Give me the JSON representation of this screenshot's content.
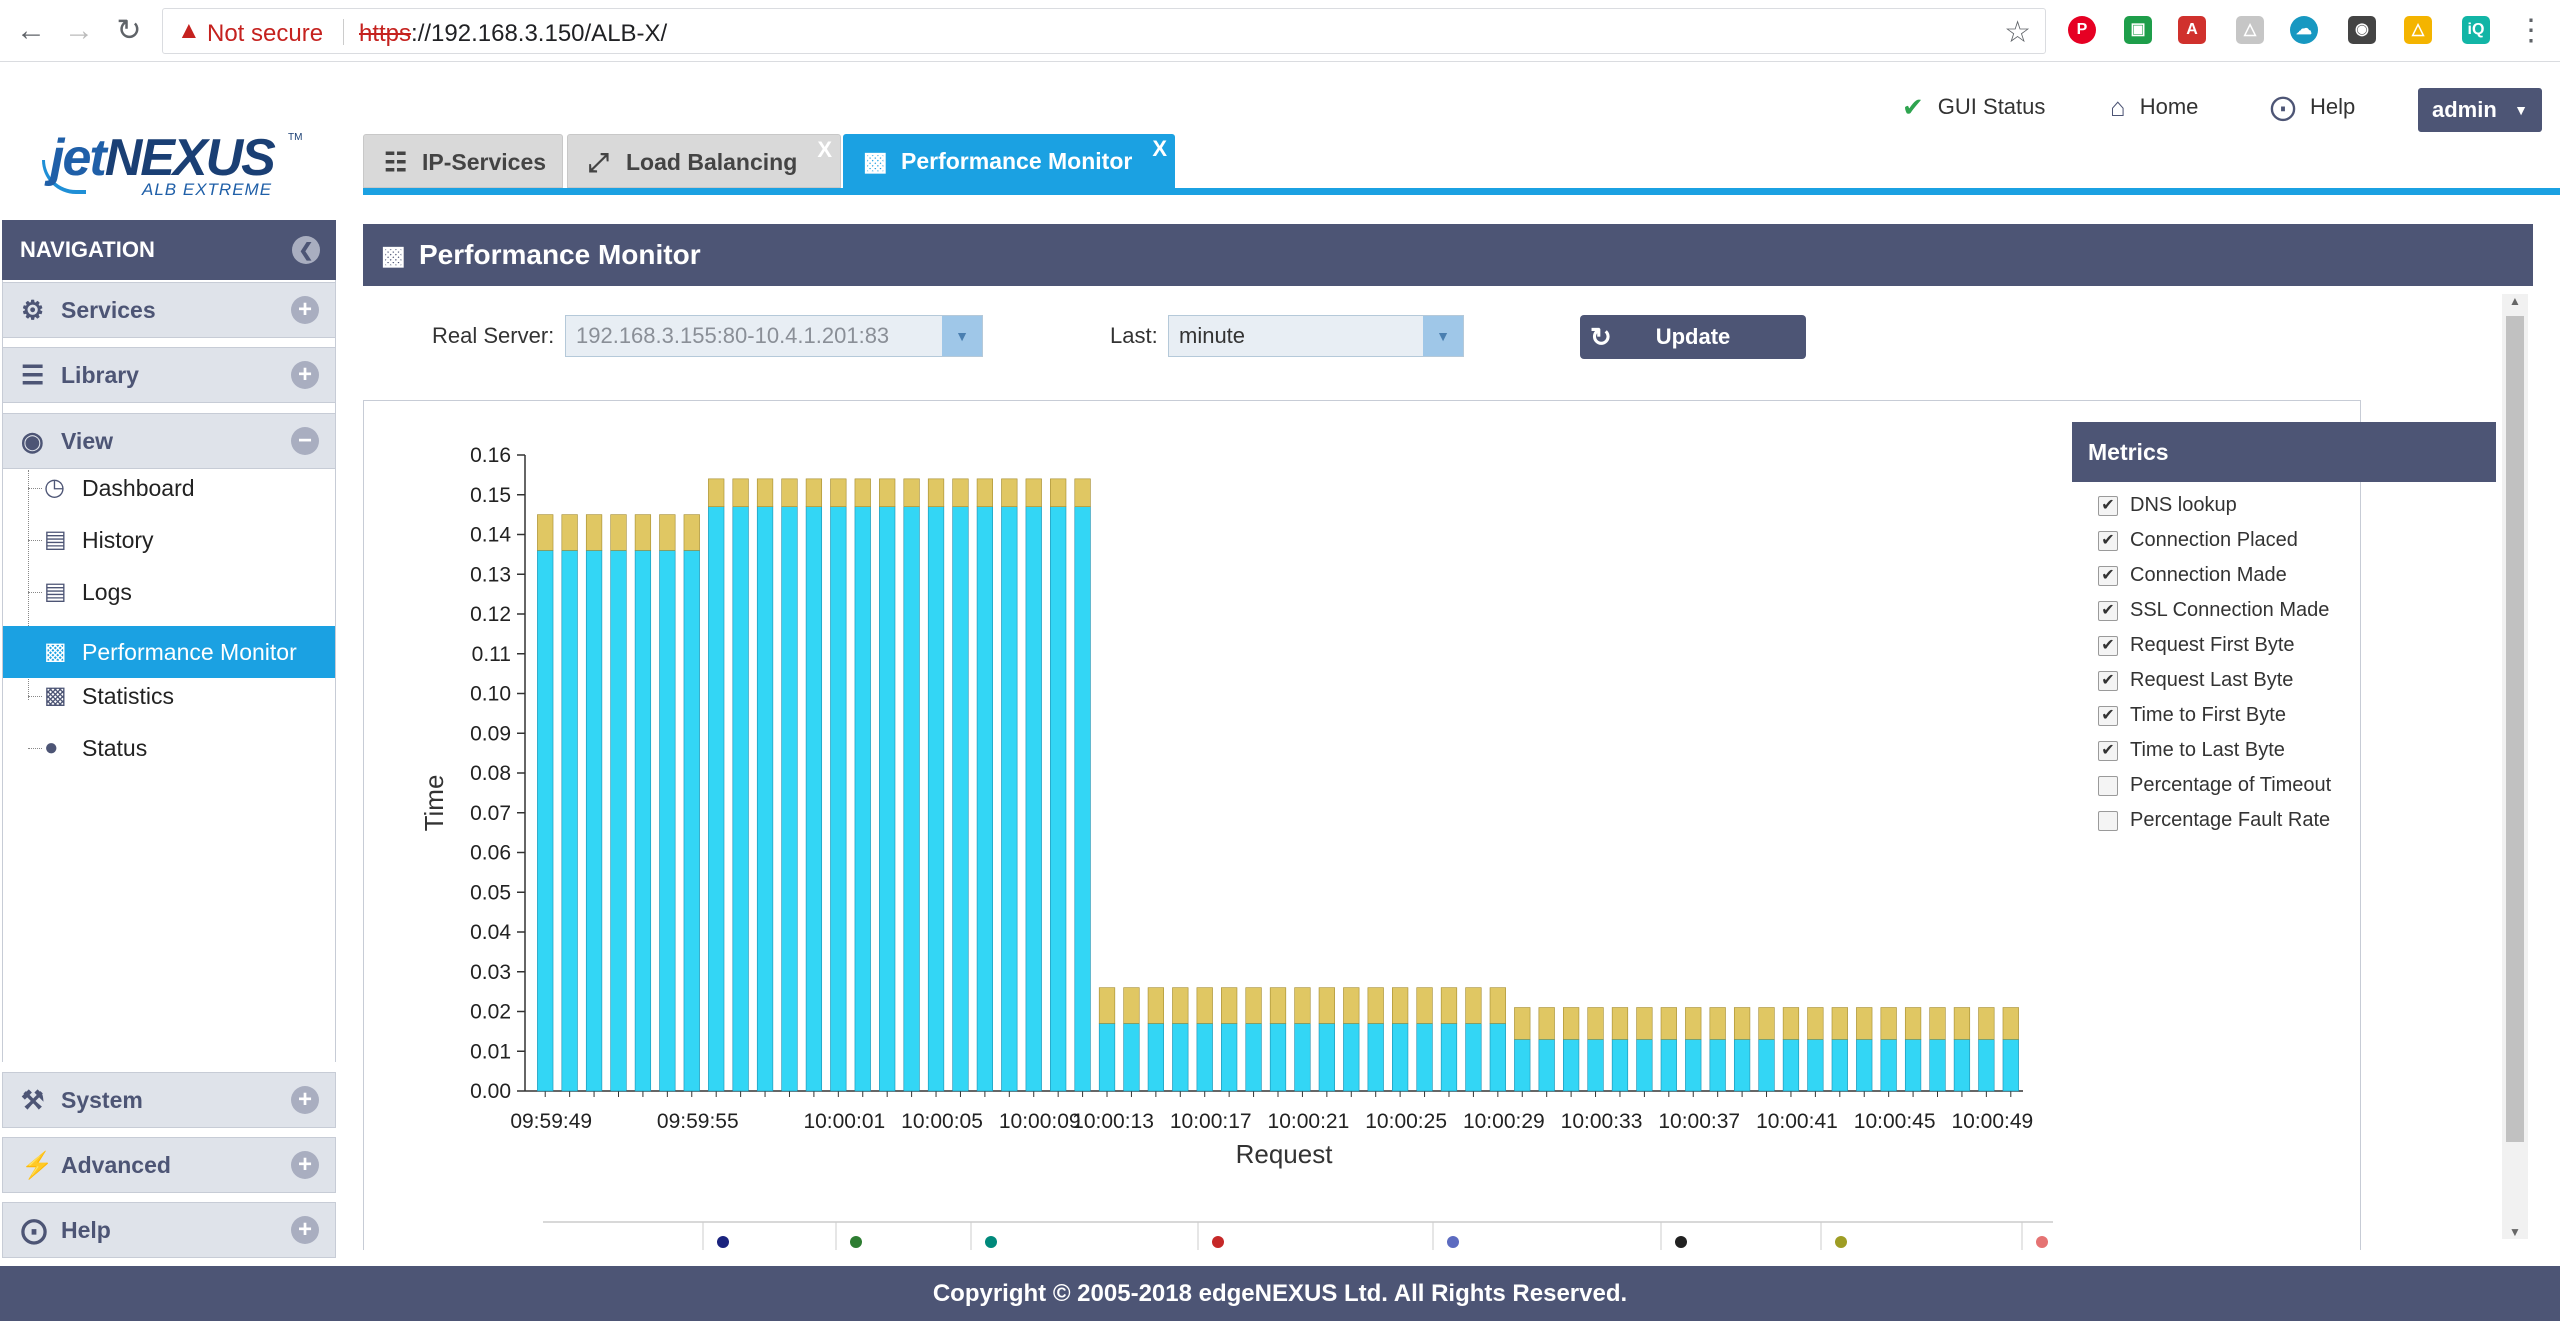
{
  "browser": {
    "security_label": "Not secure",
    "url_protocol": "https",
    "url_rest": "://192.168.3.150/ALB-X/"
  },
  "logo": {
    "jet": "jet",
    "nexus": "NEXUS",
    "tagline": "ALB EXTREME"
  },
  "header": {
    "gui_status": "GUI Status",
    "home": "Home",
    "help": "Help",
    "user": "admin"
  },
  "tabs": [
    {
      "label": "IP-Services"
    },
    {
      "label": "Load Balancing",
      "close": "X"
    },
    {
      "label": "Performance Monitor",
      "close": "X"
    }
  ],
  "sidebar": {
    "title": "NAVIGATION",
    "sections": {
      "services": "Services",
      "library": "Library",
      "view": "View",
      "system": "System",
      "advanced": "Advanced",
      "help": "Help"
    },
    "view_items": [
      "Dashboard",
      "History",
      "Logs",
      "Performance Monitor",
      "Statistics",
      "Status"
    ]
  },
  "panel": {
    "title": "Performance Monitor",
    "real_server_label": "Real Server:",
    "real_server_value": "192.168.3.155:80-10.4.1.201:83",
    "last_label": "Last:",
    "last_value": "minute",
    "update_label": "Update"
  },
  "metrics": {
    "title": "Metrics",
    "items": [
      {
        "label": "DNS lookup",
        "checked": true
      },
      {
        "label": "Connection Placed",
        "checked": true
      },
      {
        "label": "Connection Made",
        "checked": true
      },
      {
        "label": "SSL Connection Made",
        "checked": true
      },
      {
        "label": "Request First Byte",
        "checked": true
      },
      {
        "label": "Request Last Byte",
        "checked": true
      },
      {
        "label": "Time to First Byte",
        "checked": true
      },
      {
        "label": "Time to Last Byte",
        "checked": true
      },
      {
        "label": "Percentage of Timeout",
        "checked": false
      },
      {
        "label": "Percentage Fault Rate",
        "checked": false
      }
    ]
  },
  "chart_data": {
    "type": "bar",
    "stacked": true,
    "xlabel": "Request",
    "ylabel": "Time",
    "ylim": [
      0,
      0.16
    ],
    "yticks": [
      "0.00",
      "0.01",
      "0.02",
      "0.03",
      "0.04",
      "0.05",
      "0.06",
      "0.07",
      "0.08",
      "0.09",
      "0.10",
      "0.11",
      "0.12",
      "0.13",
      "0.14",
      "0.15",
      "0.16"
    ],
    "xtick_labels": [
      "09:59:49",
      "09:59:55",
      "10:00:01",
      "10:00:05",
      "10:00:09",
      "10:00:13",
      "10:00:17",
      "10:00:21",
      "10:00:25",
      "10:00:29",
      "10:00:33",
      "10:00:37",
      "10:00:41",
      "10:00:45",
      "10:00:49"
    ],
    "bar_count": 61,
    "colors": {
      "lower": "#33d6f5",
      "upper": "#e0c763"
    },
    "series": [
      {
        "values": [
          0.136,
          0.136,
          0.136,
          0.136,
          0.136,
          0.136,
          0.136,
          0.147,
          0.147,
          0.147,
          0.147,
          0.147,
          0.147,
          0.147,
          0.147,
          0.147,
          0.147,
          0.147,
          0.147,
          0.147,
          0.147,
          0.147,
          0.147,
          0.017,
          0.017,
          0.017,
          0.017,
          0.017,
          0.017,
          0.017,
          0.017,
          0.017,
          0.017,
          0.017,
          0.017,
          0.017,
          0.017,
          0.017,
          0.017,
          0.017,
          0.013,
          0.013,
          0.013,
          0.013,
          0.013,
          0.013,
          0.013,
          0.013,
          0.013,
          0.013,
          0.013,
          0.013,
          0.013,
          0.013,
          0.013,
          0.013,
          0.013,
          0.013,
          0.013,
          0.013,
          0.013
        ]
      },
      {
        "values": [
          0.009,
          0.009,
          0.009,
          0.009,
          0.009,
          0.009,
          0.009,
          0.007,
          0.007,
          0.007,
          0.007,
          0.007,
          0.007,
          0.007,
          0.007,
          0.007,
          0.007,
          0.007,
          0.007,
          0.007,
          0.007,
          0.007,
          0.007,
          0.009,
          0.009,
          0.009,
          0.009,
          0.009,
          0.009,
          0.009,
          0.009,
          0.009,
          0.009,
          0.009,
          0.009,
          0.009,
          0.009,
          0.009,
          0.009,
          0.009,
          0.008,
          0.008,
          0.008,
          0.008,
          0.008,
          0.008,
          0.008,
          0.008,
          0.008,
          0.008,
          0.008,
          0.008,
          0.008,
          0.008,
          0.008,
          0.008,
          0.008,
          0.008,
          0.008,
          0.008,
          0.008
        ]
      }
    ]
  },
  "footer": {
    "copyright": "Copyright © 2005-2018 edgeNEXUS Ltd. All Rights Reserved."
  }
}
